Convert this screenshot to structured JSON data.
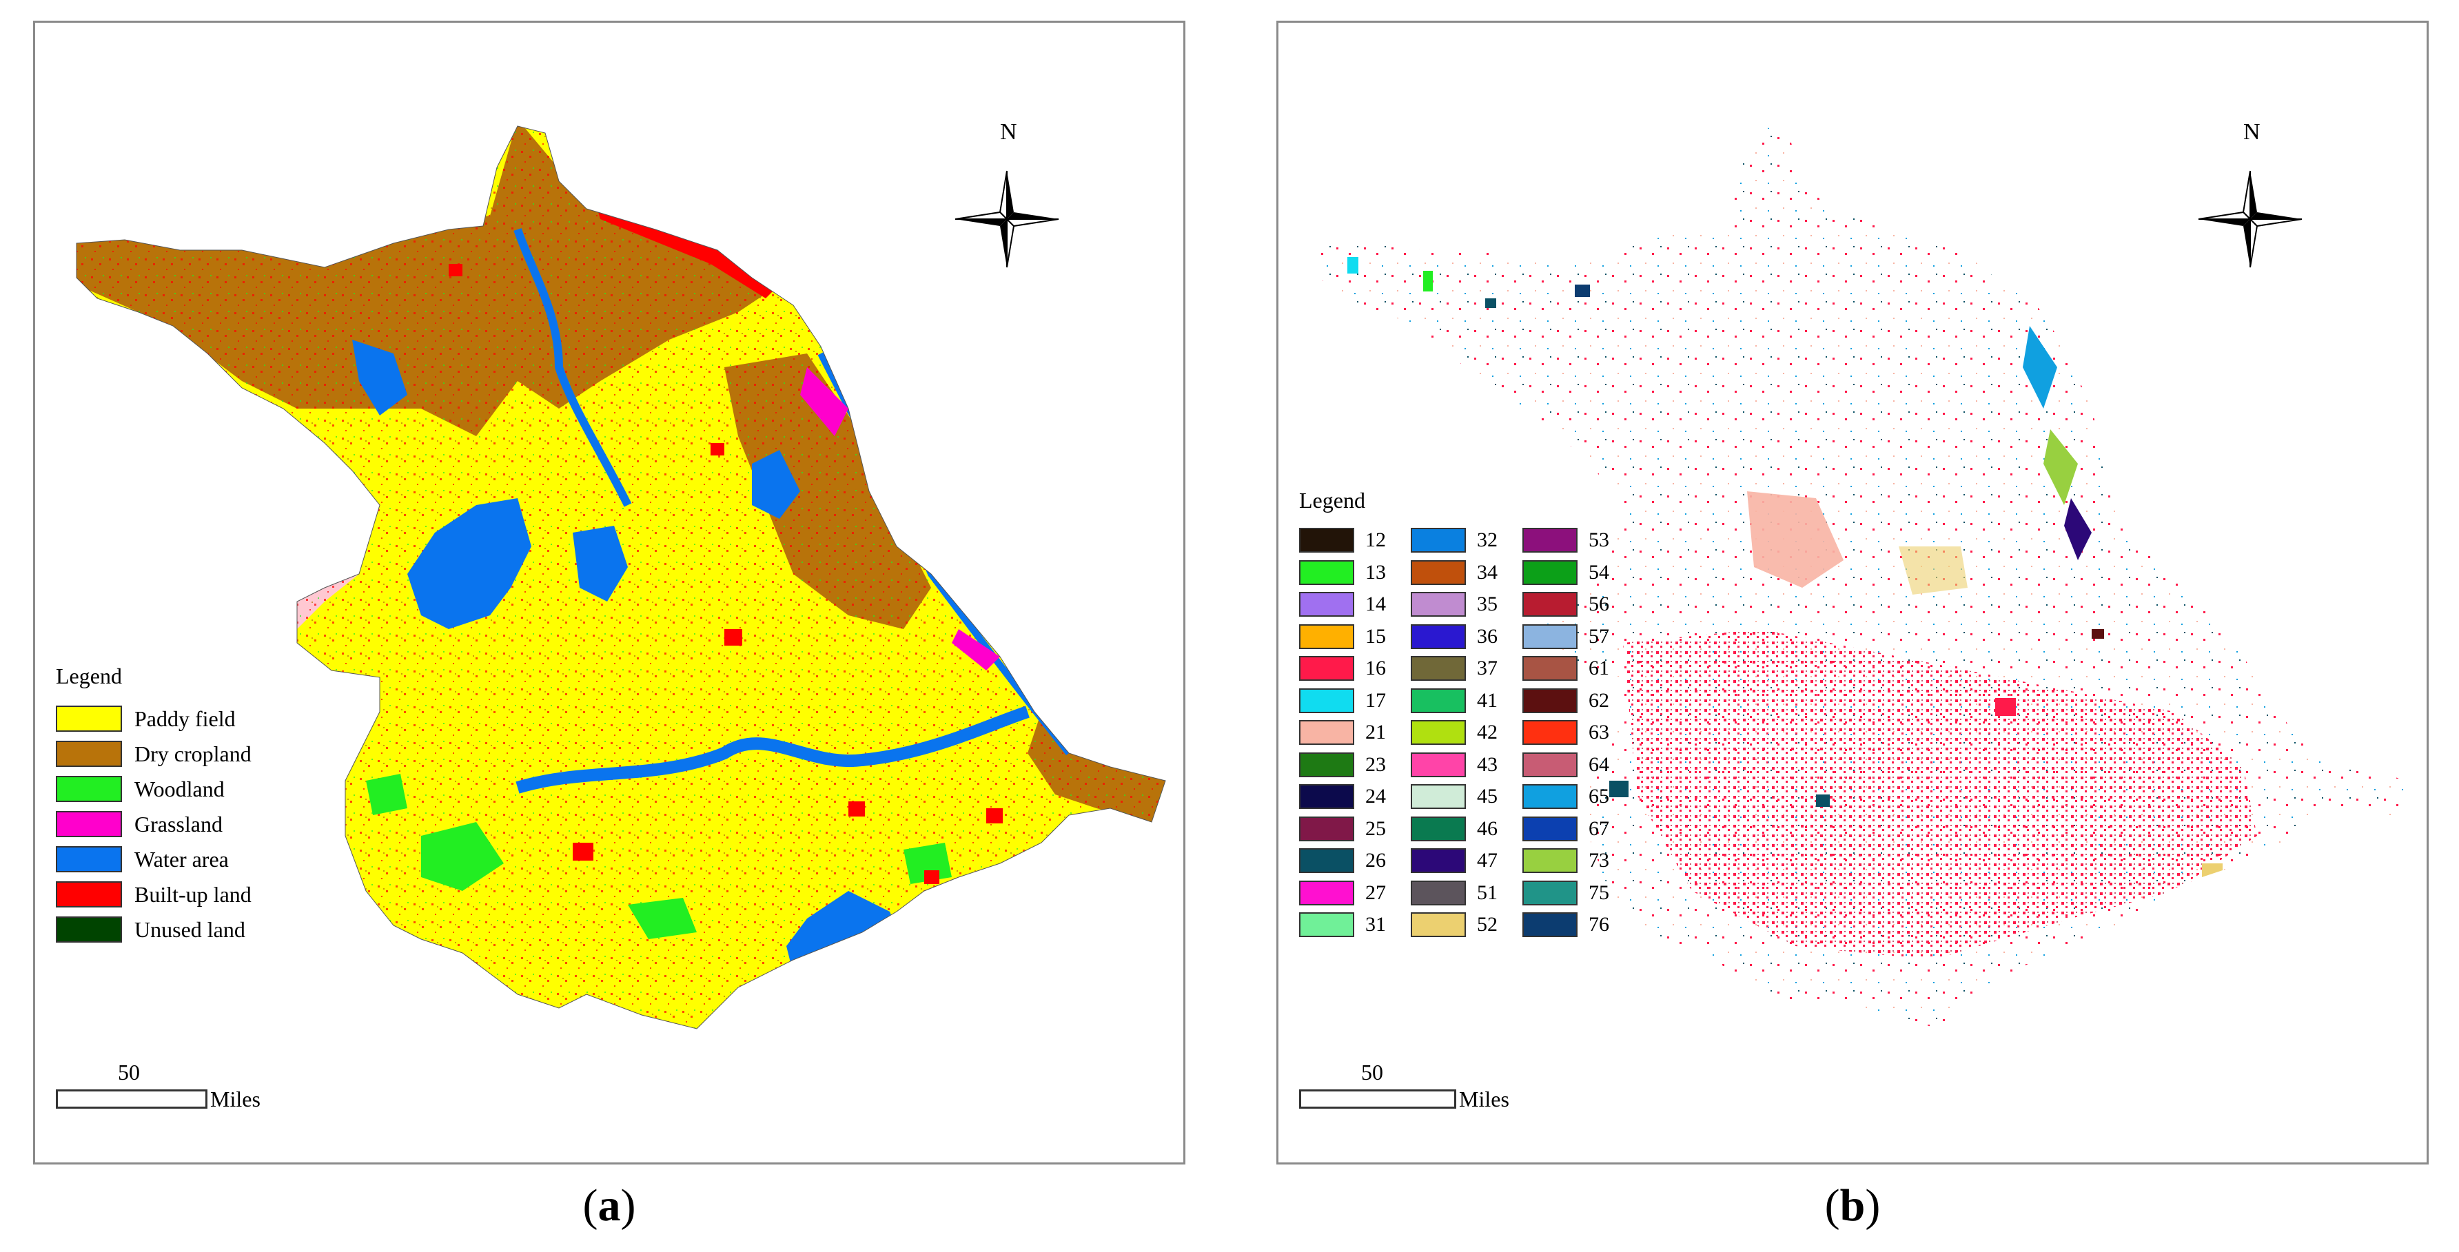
{
  "panel_a": {
    "caption_open": "(",
    "caption_letter": "a",
    "caption_close": ")",
    "north_label": "N",
    "legend_title": "Legend",
    "legend": [
      {
        "label": "Paddy field",
        "color": "#ffff00"
      },
      {
        "label": "Dry cropland",
        "color": "#b8730a"
      },
      {
        "label": "Woodland",
        "color": "#22ee22"
      },
      {
        "label": "Grassland",
        "color": "#ff00cc"
      },
      {
        "label": "Water area",
        "color": "#0a74ee"
      },
      {
        "label": "Built-up land",
        "color": "#ff0000"
      },
      {
        "label": "Unused land",
        "color": "#004400"
      }
    ],
    "scale_value": "50",
    "scale_unit": "Miles"
  },
  "panel_b": {
    "caption_open": "(",
    "caption_letter": "b",
    "caption_close": ")",
    "north_label": "N",
    "legend_title": "Legend",
    "legend_columns": [
      [
        {
          "label": "12",
          "color": "#221408"
        },
        {
          "label": "13",
          "color": "#22ee22"
        },
        {
          "label": "14",
          "color": "#a070f0"
        },
        {
          "label": "15",
          "color": "#ffb000"
        },
        {
          "label": "16",
          "color": "#ff1a4a"
        },
        {
          "label": "17",
          "color": "#10dcf0"
        },
        {
          "label": "21",
          "color": "#f8b4a4"
        },
        {
          "label": "23",
          "color": "#1e7a14"
        },
        {
          "label": "24",
          "color": "#0c0a4c"
        },
        {
          "label": "25",
          "color": "#801848"
        },
        {
          "label": "26",
          "color": "#0a5064"
        },
        {
          "label": "27",
          "color": "#ff10d0"
        },
        {
          "label": "31",
          "color": "#70f098"
        }
      ],
      [
        {
          "label": "32",
          "color": "#0a80e0"
        },
        {
          "label": "34",
          "color": "#c0500c"
        },
        {
          "label": "35",
          "color": "#c08cd0"
        },
        {
          "label": "36",
          "color": "#2a18d0"
        },
        {
          "label": "37",
          "color": "#706838"
        },
        {
          "label": "41",
          "color": "#18c060"
        },
        {
          "label": "42",
          "color": "#b0e010"
        },
        {
          "label": "43",
          "color": "#ff44a8"
        },
        {
          "label": "45",
          "color": "#d0ecd8"
        },
        {
          "label": "46",
          "color": "#0a7a50"
        },
        {
          "label": "47",
          "color": "#2c0878"
        },
        {
          "label": "51",
          "color": "#5c545c"
        },
        {
          "label": "52",
          "color": "#ecd070"
        }
      ],
      [
        {
          "label": "53",
          "color": "#8c107c"
        },
        {
          "label": "54",
          "color": "#0ca018"
        },
        {
          "label": "56",
          "color": "#b81c30"
        },
        {
          "label": "57",
          "color": "#8cb4e0"
        },
        {
          "label": "61",
          "color": "#a85444"
        },
        {
          "label": "62",
          "color": "#5c1010"
        },
        {
          "label": "63",
          "color": "#ff3010"
        },
        {
          "label": "64",
          "color": "#c85c74"
        },
        {
          "label": "65",
          "color": "#10a0e0"
        },
        {
          "label": "67",
          "color": "#0c40b0"
        },
        {
          "label": "73",
          "color": "#98d040"
        },
        {
          "label": "75",
          "color": "#209488"
        },
        {
          "label": "76",
          "color": "#0c3c70"
        }
      ]
    ],
    "scale_value": "50",
    "scale_unit": "Miles"
  }
}
